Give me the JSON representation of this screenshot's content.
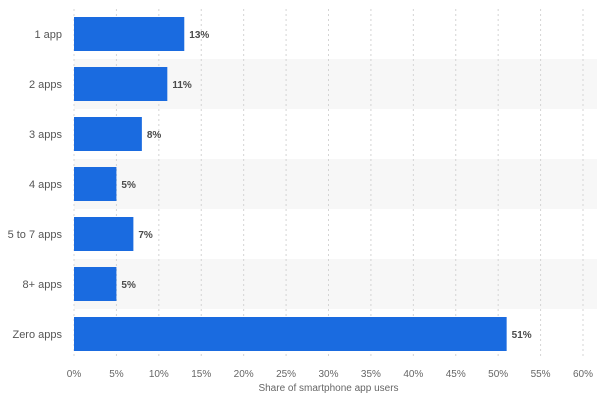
{
  "chart_data": {
    "type": "bar",
    "orientation": "horizontal",
    "categories": [
      "1 app",
      "2 apps",
      "3 apps",
      "4 apps",
      "5 to 7 apps",
      "8+ apps",
      "Zero apps"
    ],
    "values": [
      13,
      11,
      8,
      5,
      7,
      5,
      51
    ],
    "value_labels": [
      "13%",
      "11%",
      "8%",
      "5%",
      "7%",
      "5%",
      "51%"
    ],
    "x_ticks": [
      "0%",
      "5%",
      "10%",
      "15%",
      "20%",
      "25%",
      "30%",
      "35%",
      "40%",
      "45%",
      "50%",
      "55%",
      "60%"
    ],
    "xlabel": "Share of smartphone app users",
    "ylabel": "",
    "title": "",
    "xlim": [
      0,
      60
    ],
    "grid": "vertical dashed",
    "bar_color": "#1a6be0",
    "band_color": "#f7f7f7"
  }
}
